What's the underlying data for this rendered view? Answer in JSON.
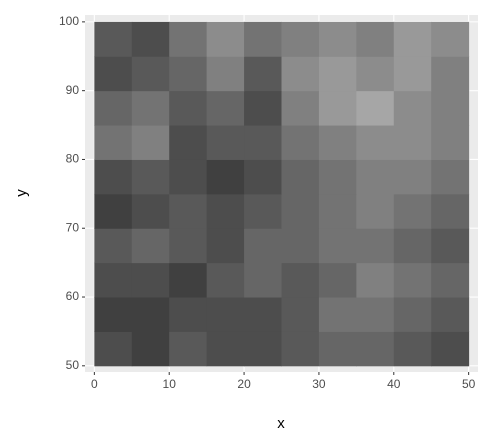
{
  "chart_data": {
    "type": "raster",
    "x_label": "x",
    "y_label": "y",
    "x": [
      0,
      5,
      10,
      15,
      20,
      25,
      30,
      35,
      40,
      45,
      50
    ],
    "y": [
      50,
      55,
      60,
      65,
      70,
      75,
      80,
      85,
      90,
      95,
      100
    ],
    "z": [
      [
        0.3,
        0.25,
        0.35,
        0.3,
        0.3,
        0.35,
        0.4,
        0.4,
        0.35,
        0.3
      ],
      [
        0.25,
        0.25,
        0.3,
        0.3,
        0.3,
        0.35,
        0.45,
        0.45,
        0.4,
        0.35
      ],
      [
        0.3,
        0.3,
        0.25,
        0.35,
        0.4,
        0.35,
        0.4,
        0.5,
        0.45,
        0.4
      ],
      [
        0.35,
        0.4,
        0.35,
        0.3,
        0.4,
        0.4,
        0.45,
        0.45,
        0.4,
        0.35
      ],
      [
        0.25,
        0.3,
        0.35,
        0.3,
        0.35,
        0.4,
        0.45,
        0.5,
        0.45,
        0.4
      ],
      [
        0.3,
        0.35,
        0.3,
        0.25,
        0.3,
        0.4,
        0.45,
        0.5,
        0.5,
        0.45
      ],
      [
        0.45,
        0.5,
        0.3,
        0.35,
        0.35,
        0.45,
        0.5,
        0.55,
        0.55,
        0.5
      ],
      [
        0.4,
        0.45,
        0.35,
        0.4,
        0.3,
        0.5,
        0.6,
        0.65,
        0.55,
        0.5
      ],
      [
        0.3,
        0.35,
        0.4,
        0.5,
        0.35,
        0.55,
        0.6,
        0.55,
        0.6,
        0.5
      ],
      [
        0.35,
        0.3,
        0.45,
        0.55,
        0.45,
        0.5,
        0.55,
        0.5,
        0.6,
        0.55
      ]
    ],
    "xlim": [
      -1.25,
      51.25
    ],
    "ylim": [
      49.1,
      101
    ],
    "xticks": [
      0,
      10,
      20,
      30,
      40,
      50
    ],
    "yticks": [
      50,
      60,
      70,
      80,
      90,
      100
    ],
    "panel_color": "#ebebeb",
    "grid": true
  }
}
